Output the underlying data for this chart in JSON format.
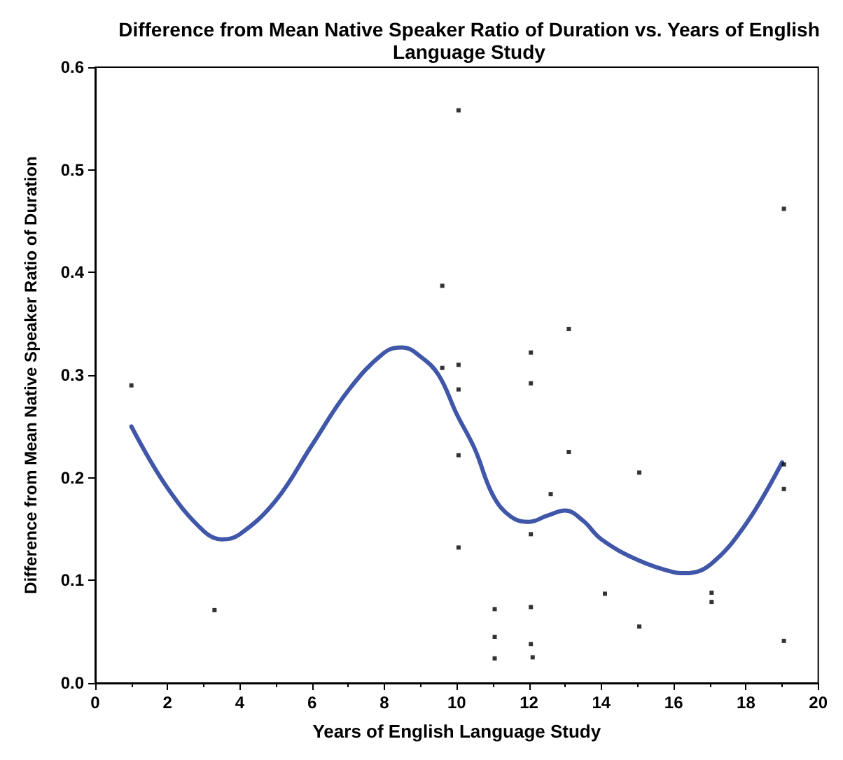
{
  "chart_data": {
    "type": "scatter",
    "title": "Difference from Mean Native Speaker Ratio of Duration vs. Years of English\nLanguage Study",
    "xlabel": "Years of English Language Study",
    "ylabel": "Difference from Mean Native Speaker Ratio of Duration",
    "xlim": [
      0,
      20
    ],
    "ylim": [
      0,
      0.6
    ],
    "xticks": [
      0,
      2,
      4,
      6,
      8,
      10,
      12,
      14,
      16,
      18,
      20
    ],
    "yticks": [
      {
        "value": 0,
        "label": "0.0"
      },
      {
        "value": 0.1,
        "label": "0.1"
      },
      {
        "value": 0.2,
        "label": "0.2"
      },
      {
        "value": 0.3,
        "label": "0.3"
      },
      {
        "value": 0.4,
        "label": "0.4"
      },
      {
        "value": 0.5,
        "label": "0.5"
      },
      {
        "value": 0.6,
        "label": "0.6"
      }
    ],
    "grid": false,
    "marker": "square",
    "series": [
      {
        "color": "#000000",
        "x": [
          1.0,
          3.3,
          9.6,
          9.6,
          10.05,
          10.05,
          10.05,
          10.05,
          10.05,
          11.05,
          11.05,
          11.05,
          12.05,
          12.05,
          12.05,
          12.05,
          12.05,
          12.1,
          12.6,
          13.1,
          13.1,
          14.1,
          15.05,
          15.05,
          17.05,
          17.05,
          19.05,
          19.05,
          19.05,
          19.05
        ],
        "values": [
          0.29,
          0.071,
          0.387,
          0.307,
          0.558,
          0.31,
          0.286,
          0.222,
          0.132,
          0.072,
          0.045,
          0.024,
          0.322,
          0.292,
          0.145,
          0.074,
          0.038,
          0.025,
          0.184,
          0.345,
          0.225,
          0.087,
          0.205,
          0.055,
          0.088,
          0.079,
          0.462,
          0.213,
          0.189,
          0.041
        ]
      },
      {
        "type": "line",
        "color": "#4056a8",
        "marker": "none",
        "line_style": "solid",
        "x": [
          1,
          2,
          3,
          3.5,
          4,
          5,
          6,
          7,
          8,
          8.5,
          9,
          9.5,
          10,
          10.5,
          11,
          11.5,
          12,
          12.5,
          13,
          13.5,
          14,
          15,
          16,
          16.3,
          17,
          18,
          19
        ],
        "values": [
          0.25,
          0.19,
          0.148,
          0.14,
          0.145,
          0.178,
          0.232,
          0.285,
          0.322,
          0.327,
          0.318,
          0.3,
          0.262,
          0.228,
          0.183,
          0.162,
          0.157,
          0.163,
          0.168,
          0.158,
          0.14,
          0.12,
          0.108,
          0.107,
          0.115,
          0.155,
          0.215
        ]
      }
    ]
  }
}
